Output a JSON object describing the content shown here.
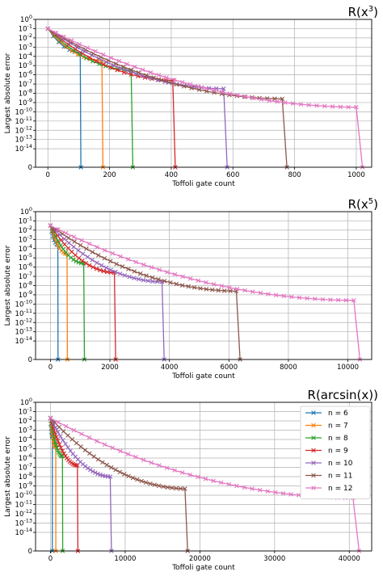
{
  "chart_data": [
    {
      "type": "line",
      "title": "R(x³)",
      "title_base": "R(x",
      "title_sup": "3",
      "title_tail": ")",
      "xlabel": "Toffoli gate count",
      "ylabel": "Largest absolute error",
      "xlim": [
        -40,
        1050
      ],
      "xticks": [
        0,
        200,
        400,
        600,
        800,
        1000
      ],
      "yscale": "log",
      "ylim_exp": [
        -16,
        0
      ],
      "ytick_exps": [
        0,
        -1,
        -2,
        -3,
        -4,
        -5,
        -6,
        -7,
        -8,
        -9,
        -10,
        -11,
        -12,
        -13,
        -14
      ],
      "ytick_labels": [
        "10^0",
        "10^-1",
        "10^-2",
        "10^-3",
        "10^-4",
        "10^-5",
        "10^-6",
        "10^-7",
        "10^-8",
        "10^-9",
        "10^-10",
        "10^-11",
        "10^-12",
        "10^-13",
        "10^-14"
      ],
      "bottom_label": "0",
      "grid": true,
      "legend": false,
      "series": [
        {
          "name": "n = 6",
          "color": "#1f77b4",
          "start_exp": -1.0,
          "xmax": 105,
          "knee_exp": -3.6,
          "ncross": 7
        },
        {
          "name": "n = 7",
          "color": "#ff7f0e",
          "start_exp": -1.0,
          "xmax": 175,
          "knee_exp": -4.5,
          "ncross": 10
        },
        {
          "name": "n = 8",
          "color": "#2ca02c",
          "start_exp": -1.0,
          "xmax": 270,
          "knee_exp": -5.5,
          "ncross": 14
        },
        {
          "name": "n = 9",
          "color": "#d62728",
          "start_exp": -1.0,
          "xmax": 405,
          "knee_exp": -6.6,
          "ncross": 19
        },
        {
          "name": "n = 10",
          "color": "#9467bd",
          "start_exp": -1.0,
          "xmax": 570,
          "knee_exp": -7.5,
          "ncross": 25
        },
        {
          "name": "n = 11",
          "color": "#8c564b",
          "start_exp": -1.0,
          "xmax": 760,
          "knee_exp": -8.6,
          "ncross": 32
        },
        {
          "name": "n = 12",
          "color": "#e377c2",
          "start_exp": -1.0,
          "xmax": 1000,
          "knee_exp": -9.5,
          "ncross": 40
        }
      ]
    },
    {
      "type": "line",
      "title": "R(x⁵)",
      "title_base": "R(x",
      "title_sup": "5",
      "title_tail": ")",
      "xlabel": "Toffoli gate count",
      "ylabel": "Largest absolute error",
      "xlim": [
        -500,
        10800
      ],
      "xticks": [
        0,
        2000,
        4000,
        6000,
        8000,
        10000
      ],
      "yscale": "log",
      "ylim_exp": [
        -16,
        0
      ],
      "ytick_exps": [
        0,
        -1,
        -2,
        -3,
        -4,
        -5,
        -6,
        -7,
        -8,
        -9,
        -10,
        -11,
        -12,
        -13,
        -14
      ],
      "ytick_labels": [
        "10^0",
        "10^-1",
        "10^-2",
        "10^-3",
        "10^-4",
        "10^-5",
        "10^-6",
        "10^-7",
        "10^-8",
        "10^-9",
        "10^-10",
        "10^-11",
        "10^-12",
        "10^-13",
        "10^-14"
      ],
      "bottom_label": "0",
      "grid": true,
      "legend": false,
      "series": [
        {
          "name": "n = 6",
          "color": "#1f77b4",
          "start_exp": -1.5,
          "xmax": 250,
          "knee_exp": -3.6,
          "ncross": 7
        },
        {
          "name": "n = 7",
          "color": "#ff7f0e",
          "start_exp": -1.5,
          "xmax": 560,
          "knee_exp": -4.6,
          "ncross": 10
        },
        {
          "name": "n = 8",
          "color": "#2ca02c",
          "start_exp": -1.5,
          "xmax": 1120,
          "knee_exp": -5.6,
          "ncross": 14
        },
        {
          "name": "n = 9",
          "color": "#d62728",
          "start_exp": -1.5,
          "xmax": 2150,
          "knee_exp": -6.6,
          "ncross": 19
        },
        {
          "name": "n = 10",
          "color": "#9467bd",
          "start_exp": -1.5,
          "xmax": 3750,
          "knee_exp": -7.6,
          "ncross": 25
        },
        {
          "name": "n = 11",
          "color": "#8c564b",
          "start_exp": -1.5,
          "xmax": 6250,
          "knee_exp": -8.6,
          "ncross": 32
        },
        {
          "name": "n = 12",
          "color": "#e377c2",
          "start_exp": -1.5,
          "xmax": 10200,
          "knee_exp": -9.6,
          "ncross": 40
        }
      ]
    },
    {
      "type": "line",
      "title": "R(arcsin(x))",
      "title_base": "R(arcsin(x))",
      "title_sup": "",
      "title_tail": "",
      "xlabel": "Toffoli gate count",
      "ylabel": "Largest absolute error",
      "xlim": [
        -2000,
        43000
      ],
      "xticks": [
        0,
        10000,
        20000,
        30000,
        40000
      ],
      "yscale": "log",
      "ylim_exp": [
        -16,
        0
      ],
      "ytick_exps": [
        0,
        -1,
        -2,
        -3,
        -4,
        -5,
        -6,
        -7,
        -8,
        -9,
        -10,
        -11,
        -12,
        -13,
        -14
      ],
      "ytick_labels": [
        "10^0",
        "10^-1",
        "10^-2",
        "10^-3",
        "10^-4",
        "10^-5",
        "10^-6",
        "10^-7",
        "10^-8",
        "10^-9",
        "10^-10",
        "10^-11",
        "10^-12",
        "10^-13",
        "10^-14"
      ],
      "bottom_label": "0",
      "grid": true,
      "legend": true,
      "legend_location": "right",
      "series": [
        {
          "name": "n = 6",
          "color": "#1f77b4",
          "start_exp": -1.7,
          "xmax": 250,
          "knee_exp": -3.7,
          "ncross": 7
        },
        {
          "name": "n = 7",
          "color": "#ff7f0e",
          "start_exp": -1.7,
          "xmax": 700,
          "knee_exp": -4.8,
          "ncross": 10
        },
        {
          "name": "n = 8",
          "color": "#2ca02c",
          "start_exp": -1.7,
          "xmax": 1600,
          "knee_exp": -5.8,
          "ncross": 14
        },
        {
          "name": "n = 9",
          "color": "#d62728",
          "start_exp": -1.7,
          "xmax": 3600,
          "knee_exp": -6.8,
          "ncross": 19
        },
        {
          "name": "n = 10",
          "color": "#9467bd",
          "start_exp": -1.7,
          "xmax": 8000,
          "knee_exp": -8.0,
          "ncross": 25
        },
        {
          "name": "n = 11",
          "color": "#8c564b",
          "start_exp": -1.7,
          "xmax": 18000,
          "knee_exp": -9.3,
          "ncross": 32
        },
        {
          "name": "n = 12",
          "color": "#e377c2",
          "start_exp": -1.7,
          "xmax": 40500,
          "knee_exp": -10.3,
          "ncross": 40
        }
      ]
    }
  ]
}
